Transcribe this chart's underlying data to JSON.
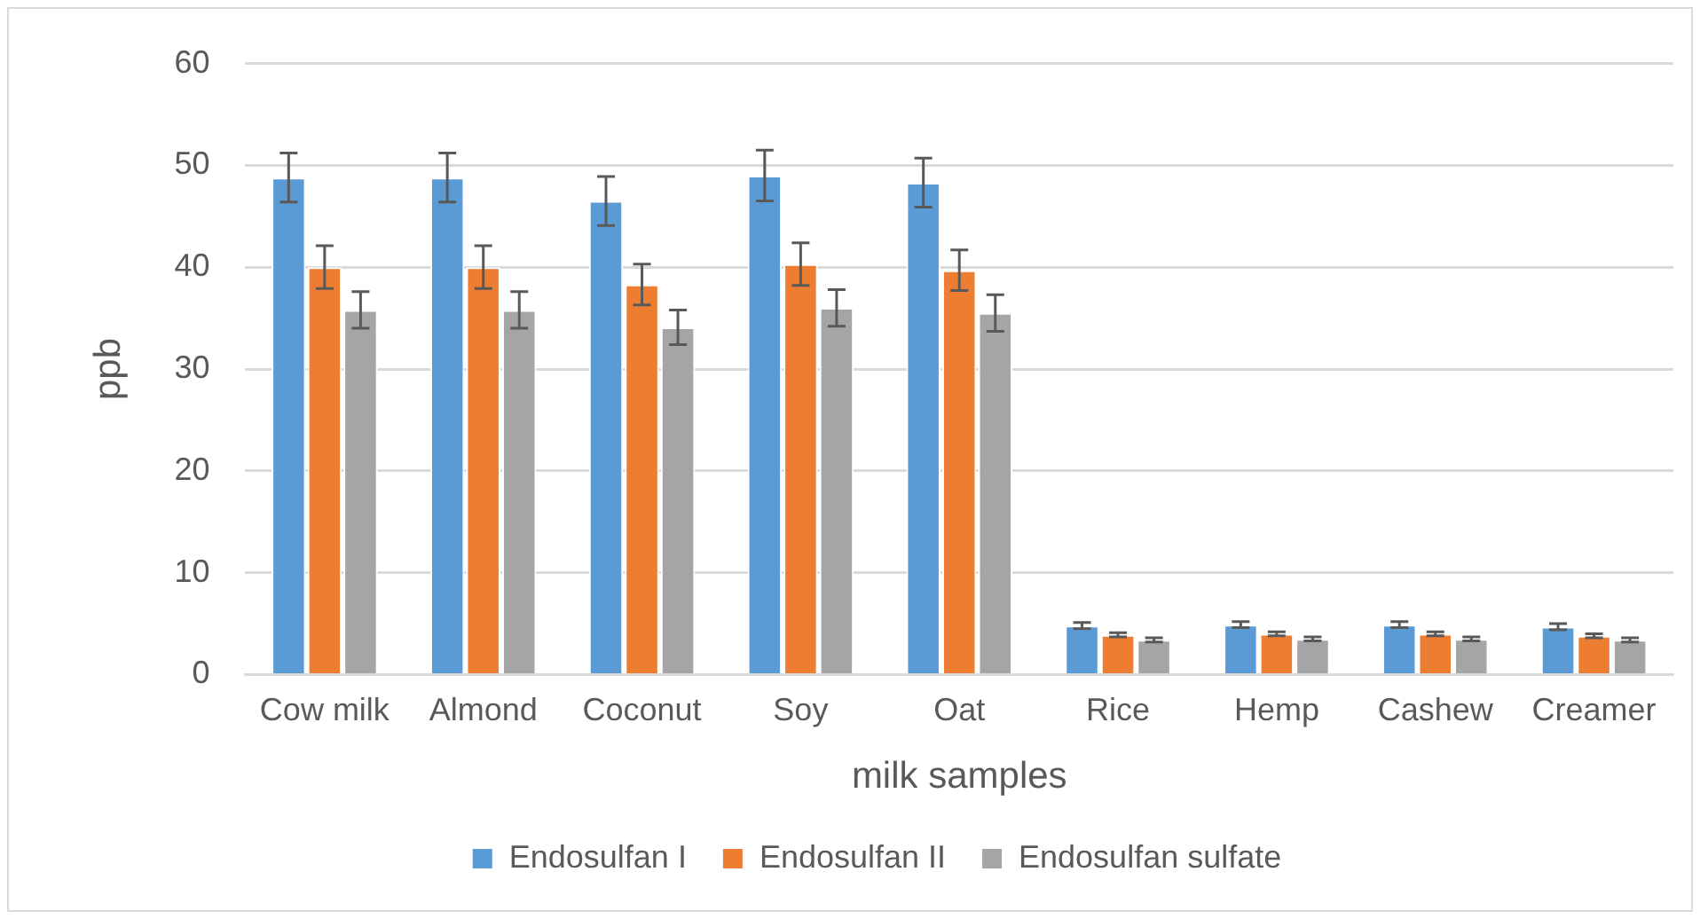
{
  "chart_data": {
    "type": "bar",
    "xlabel": "milk samples",
    "ylabel": "ppb",
    "categories": [
      "Cow milk",
      "Almond",
      "Coconut",
      "Soy",
      "Oat",
      "Rice",
      "Hemp",
      "Cashew",
      "Creamer"
    ],
    "series": [
      {
        "name": "Endosulfan I",
        "color": "#5b9bd5",
        "values": [
          48.8,
          48.8,
          46.5,
          49.0,
          48.3,
          4.8,
          4.9,
          4.9,
          4.7
        ],
        "errors": [
          2.4,
          2.4,
          2.4,
          2.5,
          2.4,
          0.3,
          0.3,
          0.3,
          0.3
        ]
      },
      {
        "name": "Endosulfan II",
        "color": "#ed7d31",
        "values": [
          40.0,
          40.0,
          38.3,
          40.3,
          39.7,
          3.9,
          4.0,
          4.0,
          3.8
        ],
        "errors": [
          2.1,
          2.1,
          2.0,
          2.1,
          2.0,
          0.2,
          0.2,
          0.2,
          0.2
        ]
      },
      {
        "name": "Endosulfan sulfate",
        "color": "#a5a5a5",
        "values": [
          35.8,
          35.8,
          34.1,
          36.0,
          35.5,
          3.4,
          3.5,
          3.5,
          3.4
        ],
        "errors": [
          1.8,
          1.8,
          1.7,
          1.8,
          1.8,
          0.2,
          0.2,
          0.2,
          0.2
        ]
      }
    ],
    "ylim": [
      0,
      60
    ],
    "yticks": [
      0,
      10,
      20,
      30,
      40,
      50,
      60
    ],
    "grid": "y",
    "legend": "bottom"
  }
}
